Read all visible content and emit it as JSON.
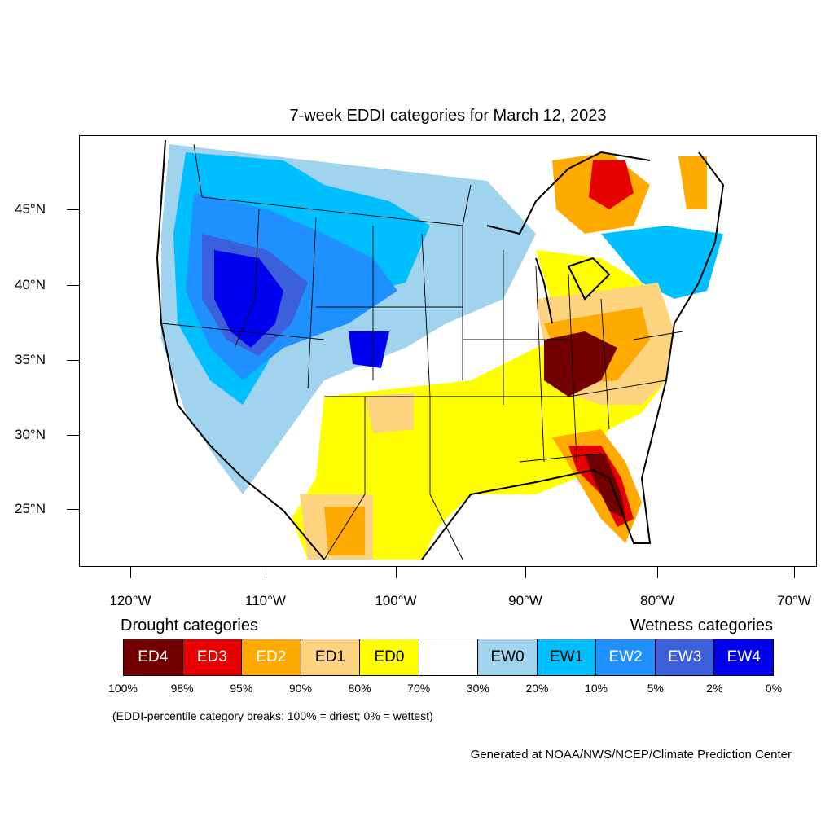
{
  "title": "7-week EDDI categories for March 12, 2023",
  "map": {
    "lat_ticks": [
      "45°N",
      "40°N",
      "35°N",
      "30°N",
      "25°N"
    ],
    "lon_ticks": [
      "120°W",
      "110°W",
      "100°W",
      "90°W",
      "80°W",
      "70°W"
    ],
    "boundary_color": "#000000"
  },
  "legend": {
    "drought_title": "Drought categories",
    "wetness_title": "Wetness categories",
    "categories": [
      {
        "label": "ED4",
        "color": "#730000",
        "text_color": "#ffffff"
      },
      {
        "label": "ED3",
        "color": "#e60000",
        "text_color": "#ffffff"
      },
      {
        "label": "ED2",
        "color": "#ffaa00",
        "text_color": "#ffffff"
      },
      {
        "label": "ED1",
        "color": "#fcd37f",
        "text_color": "#000000"
      },
      {
        "label": "ED0",
        "color": "#ffff00",
        "text_color": "#000000"
      },
      {
        "label": "",
        "color": "#ffffff",
        "text_color": "#000000"
      },
      {
        "label": "EW0",
        "color": "#9fd3ee",
        "text_color": "#000000"
      },
      {
        "label": "EW1",
        "color": "#00bfff",
        "text_color": "#000000"
      },
      {
        "label": "EW2",
        "color": "#1e90ff",
        "text_color": "#ffffff"
      },
      {
        "label": "EW3",
        "color": "#3c5fdc",
        "text_color": "#ffffff"
      },
      {
        "label": "EW4",
        "color": "#0000f0",
        "text_color": "#ffffff"
      }
    ],
    "percentiles": [
      "100%",
      "98%",
      "95%",
      "90%",
      "80%",
      "70%",
      "30%",
      "20%",
      "10%",
      "5%",
      "2%",
      "0%"
    ]
  },
  "note": "(EDDI-percentile category breaks: 100% = driest; 0% = wettest)",
  "credit": "Generated at NOAA/NWS/NCEP/Climate Prediction Center"
}
